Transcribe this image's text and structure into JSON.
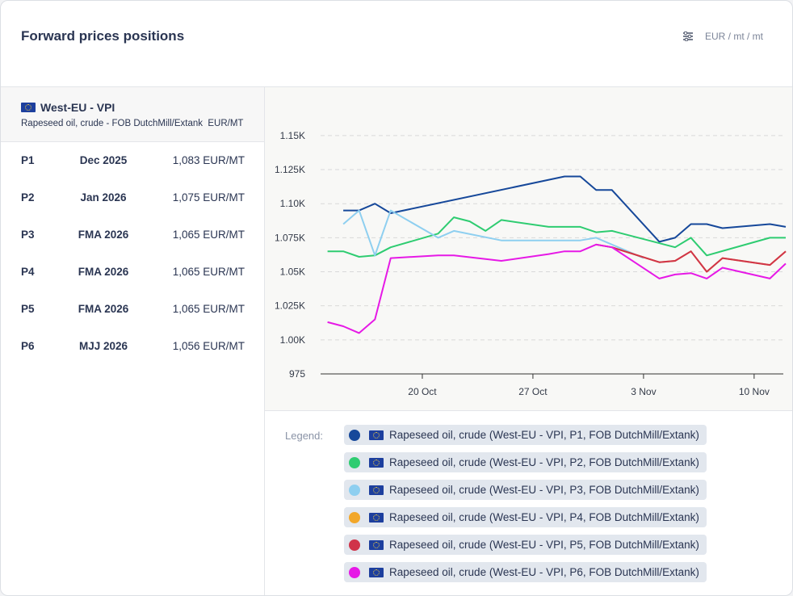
{
  "header": {
    "title": "Forward prices positions",
    "unit": "EUR / mt / mt"
  },
  "product": {
    "region": "West-EU - VPI",
    "description": "Rapeseed oil, crude - FOB DutchMill/Extank  EUR/MT"
  },
  "positions": [
    {
      "period": "P1",
      "month": "Dec 2025",
      "price": "1,083 EUR/MT"
    },
    {
      "period": "P2",
      "month": "Jan 2026",
      "price": "1,075 EUR/MT"
    },
    {
      "period": "P3",
      "month": "FMA 2026",
      "price": "1,065 EUR/MT"
    },
    {
      "period": "P4",
      "month": "FMA 2026",
      "price": "1,065 EUR/MT"
    },
    {
      "period": "P5",
      "month": "FMA 2026",
      "price": "1,065 EUR/MT"
    },
    {
      "period": "P6",
      "month": "MJJ 2026",
      "price": "1,056 EUR/MT"
    }
  ],
  "chart_data": {
    "type": "line",
    "xlim": [
      "13 Oct",
      "12 Nov"
    ],
    "xticks": [
      "20 Oct",
      "27 Oct",
      "3 Nov",
      "10 Nov"
    ],
    "ylim": [
      975,
      1160
    ],
    "yticks": [
      975,
      {
        "value": 1000,
        "label": "1.00K"
      },
      {
        "value": 1025,
        "label": "1.025K"
      },
      {
        "value": 1050,
        "label": "1.05K"
      },
      {
        "value": 1075,
        "label": "1.075K"
      },
      {
        "value": 1100,
        "label": "1.10K"
      },
      {
        "value": 1125,
        "label": "1.125K"
      },
      {
        "value": 1150,
        "label": "1.15K"
      }
    ],
    "grid": true,
    "legend_title": "Legend:",
    "series": [
      {
        "name": "Rapeseed oil, crude (West-EU - VPI, P1, FOB DutchMill/Extank)",
        "color": "#16489a",
        "x": [
          "15 Oct",
          "16 Oct",
          "17 Oct",
          "18 Oct",
          "29 Oct",
          "30 Oct",
          "31 Oct",
          "1 Nov",
          "4 Nov",
          "5 Nov",
          "6 Nov",
          "7 Nov",
          "8 Nov",
          "11 Nov",
          "12 Nov"
        ],
        "values": [
          1095,
          1095,
          1100,
          1093,
          1120,
          1120,
          1110,
          1110,
          1072,
          1075,
          1085,
          1085,
          1082,
          1085,
          1083
        ]
      },
      {
        "name": "Rapeseed oil, crude (West-EU - VPI, P2, FOB DutchMill/Extank)",
        "color": "#2ecc71",
        "x": [
          "14 Oct",
          "15 Oct",
          "16 Oct",
          "17 Oct",
          "18 Oct",
          "21 Oct",
          "22 Oct",
          "23 Oct",
          "24 Oct",
          "25 Oct",
          "28 Oct",
          "30 Oct",
          "31 Oct",
          "1 Nov",
          "5 Nov",
          "6 Nov",
          "7 Nov",
          "11 Nov",
          "12 Nov"
        ],
        "values": [
          1065,
          1065,
          1061,
          1062,
          1068,
          1078,
          1090,
          1087,
          1080,
          1088,
          1083,
          1083,
          1079,
          1080,
          1068,
          1075,
          1062,
          1075,
          1075
        ]
      },
      {
        "name": "Rapeseed oil, crude (West-EU - VPI, P3, FOB DutchMill/Extank)",
        "color": "#8ecff0",
        "x": [
          "15 Oct",
          "16 Oct",
          "17 Oct",
          "18 Oct",
          "21 Oct",
          "22 Oct",
          "25 Oct",
          "29 Oct",
          "30 Oct",
          "31 Oct",
          "3 Nov"
        ],
        "values": [
          1085,
          1095,
          1062,
          1095,
          1075,
          1080,
          1073,
          1073,
          1073,
          1075,
          1060
        ]
      },
      {
        "name": "Rapeseed oil, crude (West-EU - VPI, P4, FOB DutchMill/Extank)",
        "color": "#f2a72a",
        "x": [
          "31 Oct",
          "1 Nov",
          "4 Nov",
          "5 Nov",
          "6 Nov",
          "7 Nov",
          "8 Nov",
          "11 Nov",
          "12 Nov"
        ],
        "values": [
          1070,
          1068,
          1057,
          1058,
          1065,
          1050,
          1060,
          1055,
          1065
        ]
      },
      {
        "name": "Rapeseed oil, crude (West-EU - VPI, P5, FOB DutchMill/Extank)",
        "color": "#d03349",
        "x": [
          "31 Oct",
          "1 Nov",
          "4 Nov",
          "5 Nov",
          "6 Nov",
          "7 Nov",
          "8 Nov",
          "11 Nov",
          "12 Nov"
        ],
        "values": [
          1070,
          1068,
          1057,
          1058,
          1065,
          1050,
          1060,
          1055,
          1065
        ]
      },
      {
        "name": "Rapeseed oil, crude (West-EU - VPI, P6, FOB DutchMill/Extank)",
        "color": "#e619e6",
        "x": [
          "14 Oct",
          "15 Oct",
          "16 Oct",
          "17 Oct",
          "18 Oct",
          "21 Oct",
          "22 Oct",
          "25 Oct",
          "28 Oct",
          "29 Oct",
          "30 Oct",
          "31 Oct",
          "1 Nov",
          "4 Nov",
          "5 Nov",
          "6 Nov",
          "7 Nov",
          "8 Nov",
          "11 Nov",
          "12 Nov"
        ],
        "values": [
          1013,
          1010,
          1005,
          1015,
          1060,
          1062,
          1062,
          1058,
          1063,
          1065,
          1065,
          1070,
          1068,
          1045,
          1048,
          1049,
          1045,
          1053,
          1045,
          1056
        ]
      }
    ]
  }
}
